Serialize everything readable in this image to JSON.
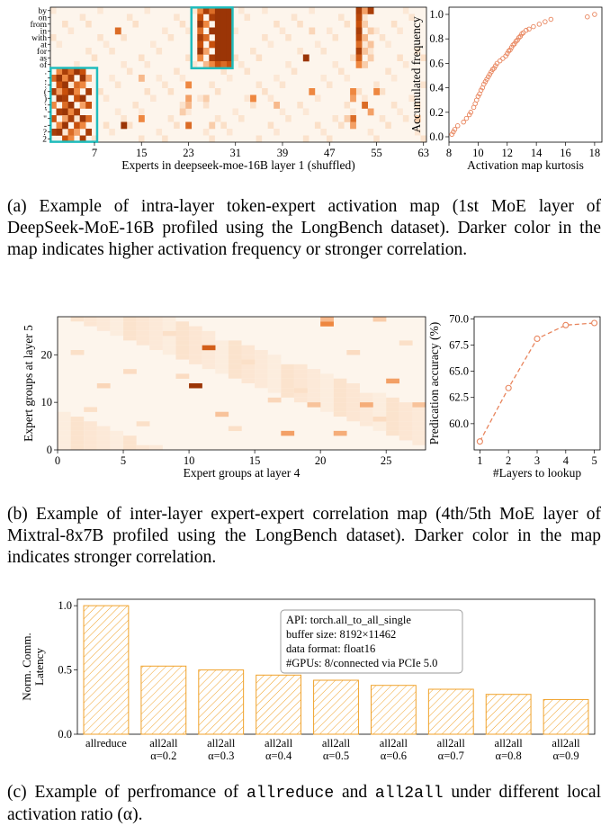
{
  "figure_a": {
    "caption": "(a) Example of intra-layer token-expert activation map (1st MoE layer of DeepSeek-MoE-16B profiled using the LongBench dataset). Darker color in the map indicates higher activation frequency or stronger correlation.",
    "heatmap": {
      "xlabel": "Experts in deepseek-moe-16B layer 1 (shuffled)",
      "xticks": [
        "7",
        "15",
        "23",
        "31",
        "39",
        "47",
        "55",
        "63"
      ],
      "yticks": [
        "by",
        "on",
        "from",
        "in",
        "with",
        "at",
        "for",
        "as",
        "of",
        ".",
        ",",
        ":",
        "(",
        ")",
        ";",
        "'",
        "\"",
        "-",
        "?",
        "2"
      ],
      "colors": {
        "scale": [
          "#fdf5ec",
          "#fbe0c8",
          "#f7b98c",
          "#ee8740",
          "#c8500c",
          "#8c2c04"
        ],
        "box": "#1fbcbc"
      },
      "cells": [
        {
          "c": 52,
          "r": 0,
          "v": 0.9
        },
        {
          "c": 52,
          "r": 1,
          "v": 0.85
        },
        {
          "c": 52,
          "r": 2,
          "v": 0.8
        },
        {
          "c": 52,
          "r": 3,
          "v": 0.9
        },
        {
          "c": 52,
          "r": 4,
          "v": 0.85
        },
        {
          "c": 52,
          "r": 5,
          "v": 0.7
        },
        {
          "c": 52,
          "r": 6,
          "v": 0.9
        },
        {
          "c": 52,
          "r": 7,
          "v": 0.75
        },
        {
          "c": 52,
          "r": 8,
          "v": 0.6
        },
        {
          "c": 53,
          "r": 0,
          "v": 0.5
        },
        {
          "c": 53,
          "r": 2,
          "v": 0.3
        },
        {
          "c": 53,
          "r": 4,
          "v": 0.4
        },
        {
          "c": 53,
          "r": 6,
          "v": 0.35
        },
        {
          "c": 53,
          "r": 8,
          "v": 0.3
        },
        {
          "c": 54,
          "r": 0,
          "v": 0.9
        },
        {
          "c": 54,
          "r": 3,
          "v": 0.3
        },
        {
          "c": 54,
          "r": 5,
          "v": 0.35
        },
        {
          "c": 54,
          "r": 7,
          "v": 0.3
        },
        {
          "c": 25,
          "r": 0,
          "v": 0.6
        },
        {
          "c": 25,
          "r": 1,
          "v": 0.8
        },
        {
          "c": 25,
          "r": 2,
          "v": 0.95
        },
        {
          "c": 25,
          "r": 3,
          "v": 0.7
        },
        {
          "c": 25,
          "r": 4,
          "v": 0.9
        },
        {
          "c": 25,
          "r": 5,
          "v": 0.8
        },
        {
          "c": 25,
          "r": 6,
          "v": 0.95
        },
        {
          "c": 25,
          "r": 7,
          "v": 0.6
        },
        {
          "c": 26,
          "r": 0,
          "v": 0.9
        },
        {
          "c": 26,
          "r": 2,
          "v": 0.6
        },
        {
          "c": 26,
          "r": 4,
          "v": 0.7
        },
        {
          "c": 26,
          "r": 6,
          "v": 0.5
        },
        {
          "c": 26,
          "r": 8,
          "v": 0.4
        },
        {
          "c": 27,
          "r": 0,
          "v": 0.7
        },
        {
          "c": 27,
          "r": 1,
          "v": 0.9
        },
        {
          "c": 27,
          "r": 3,
          "v": 0.95
        },
        {
          "c": 27,
          "r": 5,
          "v": 0.8
        },
        {
          "c": 27,
          "r": 7,
          "v": 0.9
        },
        {
          "c": 27,
          "r": 8,
          "v": 0.6
        },
        {
          "c": 28,
          "r": 0,
          "v": 0.95
        },
        {
          "c": 28,
          "r": 1,
          "v": 0.95
        },
        {
          "c": 28,
          "r": 2,
          "v": 0.95
        },
        {
          "c": 28,
          "r": 3,
          "v": 0.95
        },
        {
          "c": 28,
          "r": 4,
          "v": 0.95
        },
        {
          "c": 28,
          "r": 5,
          "v": 0.95
        },
        {
          "c": 28,
          "r": 6,
          "v": 0.95
        },
        {
          "c": 28,
          "r": 7,
          "v": 0.95
        },
        {
          "c": 28,
          "r": 8,
          "v": 0.8
        },
        {
          "c": 29,
          "r": 0,
          "v": 0.95
        },
        {
          "c": 29,
          "r": 1,
          "v": 0.95
        },
        {
          "c": 29,
          "r": 2,
          "v": 0.95
        },
        {
          "c": 29,
          "r": 3,
          "v": 0.95
        },
        {
          "c": 29,
          "r": 4,
          "v": 0.95
        },
        {
          "c": 29,
          "r": 5,
          "v": 0.95
        },
        {
          "c": 29,
          "r": 6,
          "v": 0.95
        },
        {
          "c": 29,
          "r": 7,
          "v": 0.95
        },
        {
          "c": 29,
          "r": 8,
          "v": 0.7
        },
        {
          "c": 30,
          "r": 0,
          "v": 0.95
        },
        {
          "c": 30,
          "r": 1,
          "v": 0.95
        },
        {
          "c": 30,
          "r": 2,
          "v": 0.95
        },
        {
          "c": 30,
          "r": 3,
          "v": 0.95
        },
        {
          "c": 30,
          "r": 4,
          "v": 0.95
        },
        {
          "c": 30,
          "r": 5,
          "v": 0.95
        },
        {
          "c": 30,
          "r": 6,
          "v": 0.95
        },
        {
          "c": 30,
          "r": 7,
          "v": 0.95
        },
        {
          "c": 30,
          "r": 8,
          "v": 0.8
        },
        {
          "c": 1,
          "r": 9,
          "v": 0.6
        },
        {
          "c": 2,
          "r": 9,
          "v": 0.9
        },
        {
          "c": 3,
          "r": 9,
          "v": 0.7
        },
        {
          "c": 4,
          "r": 9,
          "v": 0.95
        },
        {
          "c": 5,
          "r": 9,
          "v": 0.8
        },
        {
          "c": 0,
          "r": 10,
          "v": 0.7
        },
        {
          "c": 1,
          "r": 10,
          "v": 0.95
        },
        {
          "c": 2,
          "r": 10,
          "v": 0.6
        },
        {
          "c": 3,
          "r": 10,
          "v": 0.9
        },
        {
          "c": 5,
          "r": 10,
          "v": 0.95
        },
        {
          "c": 6,
          "r": 10,
          "v": 0.5
        },
        {
          "c": 1,
          "r": 11,
          "v": 0.8
        },
        {
          "c": 2,
          "r": 11,
          "v": 0.95
        },
        {
          "c": 4,
          "r": 11,
          "v": 0.7
        },
        {
          "c": 5,
          "r": 11,
          "v": 0.6
        },
        {
          "c": 0,
          "r": 12,
          "v": 0.9
        },
        {
          "c": 1,
          "r": 12,
          "v": 0.5
        },
        {
          "c": 2,
          "r": 12,
          "v": 0.8
        },
        {
          "c": 3,
          "r": 12,
          "v": 0.95
        },
        {
          "c": 4,
          "r": 12,
          "v": 0.6
        },
        {
          "c": 6,
          "r": 12,
          "v": 0.9
        },
        {
          "c": 1,
          "r": 13,
          "v": 0.95
        },
        {
          "c": 2,
          "r": 13,
          "v": 0.9
        },
        {
          "c": 4,
          "r": 13,
          "v": 0.8
        },
        {
          "c": 5,
          "r": 13,
          "v": 0.95
        },
        {
          "c": 0,
          "r": 14,
          "v": 0.6
        },
        {
          "c": 2,
          "r": 14,
          "v": 0.7
        },
        {
          "c": 3,
          "r": 14,
          "v": 0.95
        },
        {
          "c": 5,
          "r": 14,
          "v": 0.5
        },
        {
          "c": 6,
          "r": 14,
          "v": 0.8
        },
        {
          "c": 1,
          "r": 15,
          "v": 0.9
        },
        {
          "c": 2,
          "r": 15,
          "v": 0.95
        },
        {
          "c": 3,
          "r": 15,
          "v": 0.6
        },
        {
          "c": 4,
          "r": 15,
          "v": 0.9
        },
        {
          "c": 0,
          "r": 16,
          "v": 0.8
        },
        {
          "c": 2,
          "r": 16,
          "v": 0.5
        },
        {
          "c": 3,
          "r": 16,
          "v": 0.9
        },
        {
          "c": 5,
          "r": 16,
          "v": 0.95
        },
        {
          "c": 6,
          "r": 16,
          "v": 0.7
        },
        {
          "c": 1,
          "r": 17,
          "v": 0.6
        },
        {
          "c": 2,
          "r": 17,
          "v": 0.95
        },
        {
          "c": 4,
          "r": 17,
          "v": 0.8
        },
        {
          "c": 5,
          "r": 17,
          "v": 0.6
        },
        {
          "c": 0,
          "r": 18,
          "v": 0.9
        },
        {
          "c": 1,
          "r": 18,
          "v": 0.95
        },
        {
          "c": 3,
          "r": 18,
          "v": 0.7
        },
        {
          "c": 4,
          "r": 18,
          "v": 0.5
        },
        {
          "c": 6,
          "r": 18,
          "v": 0.9
        },
        {
          "c": 2,
          "r": 19,
          "v": 0.8
        },
        {
          "c": 3,
          "r": 19,
          "v": 0.6
        },
        {
          "c": 5,
          "r": 19,
          "v": 0.9
        },
        {
          "c": 11,
          "r": 3,
          "v": 0.7
        },
        {
          "c": 15,
          "r": 16,
          "v": 0.6
        },
        {
          "c": 12,
          "r": 17,
          "v": 0.95
        },
        {
          "c": 23,
          "r": 17,
          "v": 0.7
        },
        {
          "c": 23,
          "r": 11,
          "v": 0.6
        },
        {
          "c": 23,
          "r": 13,
          "v": 0.5
        },
        {
          "c": 23,
          "r": 14,
          "v": 0.4
        },
        {
          "c": 22,
          "r": 15,
          "v": 0.3
        },
        {
          "c": 38,
          "r": 14,
          "v": 0.4
        },
        {
          "c": 34,
          "r": 13,
          "v": 0.6
        },
        {
          "c": 43,
          "r": 7,
          "v": 0.95
        },
        {
          "c": 44,
          "r": 12,
          "v": 0.6
        },
        {
          "c": 51,
          "r": 12,
          "v": 0.6
        },
        {
          "c": 51,
          "r": 13,
          "v": 0.5
        },
        {
          "c": 51,
          "r": 16,
          "v": 0.7
        },
        {
          "c": 51,
          "r": 17,
          "v": 0.5
        },
        {
          "c": 53,
          "r": 14,
          "v": 0.7
        },
        {
          "c": 54,
          "r": 15,
          "v": 0.5
        },
        {
          "c": 55,
          "r": 12,
          "v": 0.6
        },
        {
          "c": 15,
          "r": 10,
          "v": 0.4
        },
        {
          "c": 27,
          "r": 17,
          "v": 0.3
        },
        {
          "c": 26,
          "r": 13,
          "v": 0.3
        },
        {
          "c": 44,
          "r": 3,
          "v": 0.25
        },
        {
          "c": 50,
          "r": 16,
          "v": 0.3
        },
        {
          "c": 62,
          "r": 16,
          "v": 0.3
        }
      ]
    },
    "kurtosis": {
      "type": "scatter",
      "xlabel": "Activation map kurtosis",
      "ylabel": "Accumulated frequency",
      "xlim": [
        8,
        18.5
      ],
      "ylim": [
        0,
        1.0
      ],
      "xticks": [
        "8",
        "10",
        "12",
        "14",
        "16",
        "18"
      ],
      "yticks": [
        "0.0",
        "0.2",
        "0.4",
        "0.6",
        "0.8",
        "1.0"
      ],
      "color": "#e8845c",
      "x": [
        8.2,
        8.3,
        8.4,
        8.6,
        9.0,
        9.2,
        9.4,
        9.5,
        9.7,
        9.8,
        9.9,
        10.0,
        10.1,
        10.2,
        10.3,
        10.4,
        10.5,
        10.6,
        10.7,
        10.8,
        10.9,
        11.0,
        11.1,
        11.2,
        11.3,
        11.5,
        11.7,
        11.9,
        12.0,
        12.1,
        12.2,
        12.3,
        12.4,
        12.5,
        12.6,
        12.7,
        12.8,
        12.9,
        13.0,
        13.1,
        13.3,
        13.5,
        13.8,
        14.2,
        14.6,
        15.0,
        17.5,
        18.0
      ],
      "y": [
        0.02,
        0.04,
        0.06,
        0.09,
        0.12,
        0.15,
        0.18,
        0.2,
        0.24,
        0.27,
        0.3,
        0.33,
        0.35,
        0.38,
        0.4,
        0.43,
        0.45,
        0.47,
        0.49,
        0.51,
        0.53,
        0.55,
        0.56,
        0.58,
        0.6,
        0.62,
        0.64,
        0.66,
        0.68,
        0.7,
        0.71,
        0.73,
        0.75,
        0.76,
        0.78,
        0.79,
        0.81,
        0.82,
        0.84,
        0.85,
        0.87,
        0.88,
        0.9,
        0.92,
        0.94,
        0.96,
        0.98,
        1.0
      ]
    }
  },
  "figure_b": {
    "caption": "(b) Example of inter-layer expert-expert correlation map (4th/5th MoE layer of Mixtral-8x7B profiled using the LongBench dataset). Darker color in the map indicates stronger correlation.",
    "heatmap": {
      "xlabel": "Expert groups at layer 4",
      "ylabel": "Expert groups at layer 5",
      "xticks": [
        "0",
        "5",
        "10",
        "15",
        "20",
        "25"
      ],
      "yticks": [
        "0",
        "10",
        "20"
      ],
      "xlim": [
        0,
        28
      ],
      "ylim": [
        0,
        28
      ],
      "cells": [
        {
          "c": 10,
          "r": 13,
          "v": 0.95
        },
        {
          "c": 11,
          "r": 21,
          "v": 0.75
        },
        {
          "c": 20,
          "r": 26,
          "v": 0.6
        },
        {
          "c": 20,
          "r": 27,
          "v": 0.4
        },
        {
          "c": 17,
          "r": 3,
          "v": 0.5
        },
        {
          "c": 21,
          "r": 3,
          "v": 0.45
        },
        {
          "c": 25,
          "r": 14,
          "v": 0.5
        },
        {
          "c": 23,
          "r": 9,
          "v": 0.45
        },
        {
          "c": 19,
          "r": 9,
          "v": 0.35
        },
        {
          "c": 27,
          "r": 9,
          "v": 0.35
        },
        {
          "c": 12,
          "r": 7,
          "v": 0.35
        },
        {
          "c": 24,
          "r": 27,
          "v": 0.3
        },
        {
          "c": 3,
          "r": 13,
          "v": 0.25
        },
        {
          "c": 5,
          "r": 16,
          "v": 0.22
        },
        {
          "c": 8,
          "r": 24,
          "v": 0.2
        },
        {
          "c": 14,
          "r": 18,
          "v": 0.2
        },
        {
          "c": 22,
          "r": 20,
          "v": 0.22
        },
        {
          "c": 16,
          "r": 10,
          "v": 0.25
        },
        {
          "c": 6,
          "r": 5,
          "v": 0.2
        },
        {
          "c": 2,
          "r": 8,
          "v": 0.2
        },
        {
          "c": 26,
          "r": 22,
          "v": 0.2
        },
        {
          "c": 18,
          "r": 12,
          "v": 0.2
        },
        {
          "c": 9,
          "r": 15,
          "v": 0.22
        },
        {
          "c": 13,
          "r": 4,
          "v": 0.2
        },
        {
          "c": 24,
          "r": 6,
          "v": 0.22
        },
        {
          "c": 1,
          "r": 20,
          "v": 0.2
        }
      ]
    },
    "accuracy": {
      "type": "line",
      "xlabel": "#Layers to lookup",
      "ylabel": "Predication accuracy (%)",
      "x": [
        1,
        2,
        3,
        4,
        5
      ],
      "y": [
        58.3,
        63.4,
        68.1,
        69.4,
        69.6
      ],
      "xlim": [
        0.8,
        5.2
      ],
      "ylim": [
        57.5,
        70.2
      ],
      "xticks": [
        "1",
        "2",
        "3",
        "4",
        "5"
      ],
      "yticks": [
        "60.0",
        "62.5",
        "65.0",
        "67.5",
        "70.0"
      ],
      "color": "#e8845c"
    }
  },
  "figure_c": {
    "caption_prefix": "(c) Example of perfromance of ",
    "caption_code1": "allreduce",
    "caption_mid": " and ",
    "caption_code2": "all2all",
    "caption_suffix": " under different local activation ratio (α).",
    "bars": {
      "type": "bar",
      "ylabel_line1": "Norm. Comm.",
      "ylabel_line2": "Latency",
      "ylim": [
        0,
        1.05
      ],
      "yticks": [
        "0.0",
        "0.5",
        "1.0"
      ],
      "categories": [
        [
          "allreduce",
          ""
        ],
        [
          "all2all",
          "α=0.2"
        ],
        [
          "all2all",
          "α=0.3"
        ],
        [
          "all2all",
          "α=0.4"
        ],
        [
          "all2all",
          "α=0.5"
        ],
        [
          "all2all",
          "α=0.6"
        ],
        [
          "all2all",
          "α=0.7"
        ],
        [
          "all2all",
          "α=0.8"
        ],
        [
          "all2all",
          "α=0.9"
        ]
      ],
      "values": [
        1.0,
        0.53,
        0.5,
        0.46,
        0.42,
        0.38,
        0.35,
        0.31,
        0.27
      ],
      "color": "#f0a22a",
      "legend_box": [
        "API: torch.all_to_all_single",
        "buffer size: 8192×11462",
        "data format: float16",
        "#GPUs: 8/connected via PCIe 5.0"
      ]
    }
  }
}
